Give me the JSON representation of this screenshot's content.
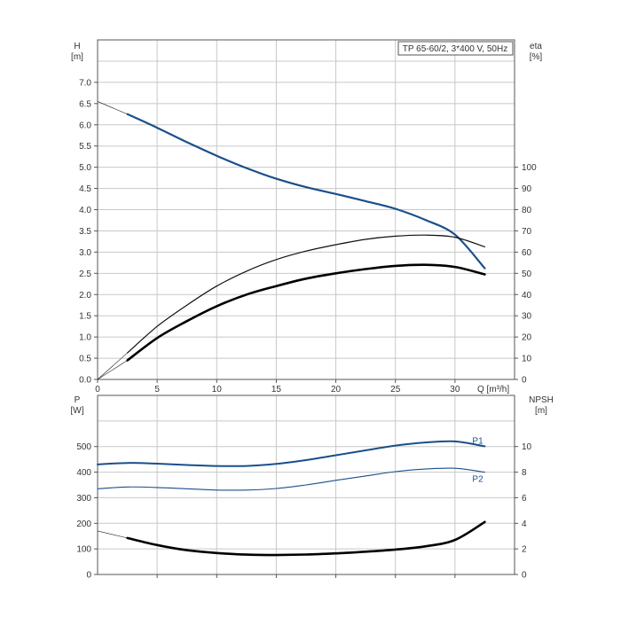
{
  "chart_data": [
    {
      "type": "line",
      "id": "top",
      "title_box": "TP 65-60/2, 3*400 V, 50Hz",
      "left_axis": {
        "label": "H",
        "unit": "[m]",
        "ylim": [
          0,
          8
        ],
        "ticks": [
          "0.0",
          "0.5",
          "1.0",
          "1.5",
          "2.0",
          "2.5",
          "3.0",
          "3.5",
          "4.0",
          "4.5",
          "5.0",
          "5.5",
          "6.0",
          "6.5",
          "7.0"
        ]
      },
      "right_axis": {
        "label": "eta",
        "unit": "[%]",
        "ylim": [
          0,
          160
        ],
        "ticks": [
          "0",
          "10",
          "20",
          "30",
          "40",
          "50",
          "60",
          "70",
          "80",
          "90",
          "100"
        ]
      },
      "x_axis": {
        "label": "Q [m³/h]",
        "xlim": [
          0,
          35
        ],
        "ticks": [
          "0",
          "5",
          "10",
          "15",
          "20",
          "25",
          "30"
        ]
      },
      "grid": true,
      "series": [
        {
          "id": "H",
          "color": "#1a4f8b",
          "axis": "left",
          "x": [
            2.5,
            5,
            7.5,
            10,
            12.5,
            15,
            17.5,
            20,
            22.5,
            25,
            27.5,
            30,
            32.5
          ],
          "y": [
            6.25,
            5.93,
            5.59,
            5.27,
            4.98,
            4.73,
            4.53,
            4.37,
            4.2,
            4.02,
            3.76,
            3.41,
            2.62
          ]
        },
        {
          "id": "eta-thin",
          "color": "#111111",
          "axis": "right",
          "x": [
            2.5,
            5,
            7.5,
            10,
            12.5,
            15,
            17.5,
            20,
            22.5,
            25,
            27.5,
            30,
            32.5
          ],
          "y": [
            12.5,
            25,
            35,
            44,
            51,
            56.5,
            60.5,
            63.5,
            66,
            67.5,
            68,
            67,
            62.5
          ]
        },
        {
          "id": "eta-thick",
          "color": "#000000",
          "axis": "right",
          "x": [
            2.5,
            5,
            7.5,
            10,
            12.5,
            15,
            17.5,
            20,
            22.5,
            25,
            27.5,
            30,
            32.5
          ],
          "y": [
            9,
            19.5,
            27.5,
            34.5,
            40,
            44,
            47.5,
            50,
            52,
            53.5,
            54,
            53,
            49.5
          ]
        }
      ],
      "reference_lines": [
        {
          "axis": "left",
          "x": [
            0,
            2.5
          ],
          "y": [
            6.55,
            6.25
          ]
        },
        {
          "axis": "right",
          "x": [
            0,
            2.5
          ],
          "y": [
            0,
            12.5
          ]
        },
        {
          "axis": "right",
          "x": [
            0,
            2.5
          ],
          "y": [
            0,
            9
          ]
        }
      ]
    },
    {
      "type": "line",
      "id": "bottom",
      "left_axis": {
        "label": "P",
        "unit": "[W]",
        "ylim": [
          0,
          700
        ],
        "ticks": [
          "0",
          "100",
          "200",
          "300",
          "400",
          "500"
        ]
      },
      "right_axis": {
        "label": "NPSH",
        "unit": "[m]",
        "ylim": [
          0,
          14
        ],
        "ticks": [
          "0",
          "2",
          "4",
          "6",
          "8",
          "10"
        ]
      },
      "x_axis": {
        "xlim": [
          0,
          35
        ]
      },
      "grid": true,
      "series": [
        {
          "id": "P1",
          "name": "P1",
          "color": "#1a4f8b",
          "axis": "left",
          "x": [
            0,
            2.5,
            5,
            7.5,
            10,
            12.5,
            15,
            17.5,
            20,
            22.5,
            25,
            27.5,
            30,
            32.5
          ],
          "y": [
            430,
            436,
            433,
            428,
            424,
            424,
            432,
            447,
            466,
            485,
            504,
            516,
            520,
            501
          ]
        },
        {
          "id": "P2",
          "name": "P2",
          "color": "#1a4f8b",
          "axis": "left",
          "x": [
            0,
            2.5,
            5,
            7.5,
            10,
            12.5,
            15,
            17.5,
            20,
            22.5,
            25,
            27.5,
            30,
            32.5
          ],
          "y": [
            335,
            342,
            340,
            335,
            330,
            330,
            336,
            350,
            368,
            385,
            402,
            412,
            415,
            400
          ]
        },
        {
          "id": "NPSH",
          "color": "#000000",
          "axis": "right",
          "x": [
            2.5,
            5,
            7.5,
            10,
            12.5,
            15,
            17.5,
            20,
            22.5,
            25,
            27.5,
            30,
            32.5
          ],
          "y": [
            2.85,
            2.3,
            1.9,
            1.68,
            1.55,
            1.52,
            1.56,
            1.65,
            1.78,
            1.95,
            2.2,
            2.7,
            4.1
          ]
        }
      ],
      "reference_lines": [
        {
          "axis": "right",
          "x": [
            0,
            2.5
          ],
          "y": [
            3.4,
            2.85
          ]
        }
      ]
    }
  ]
}
